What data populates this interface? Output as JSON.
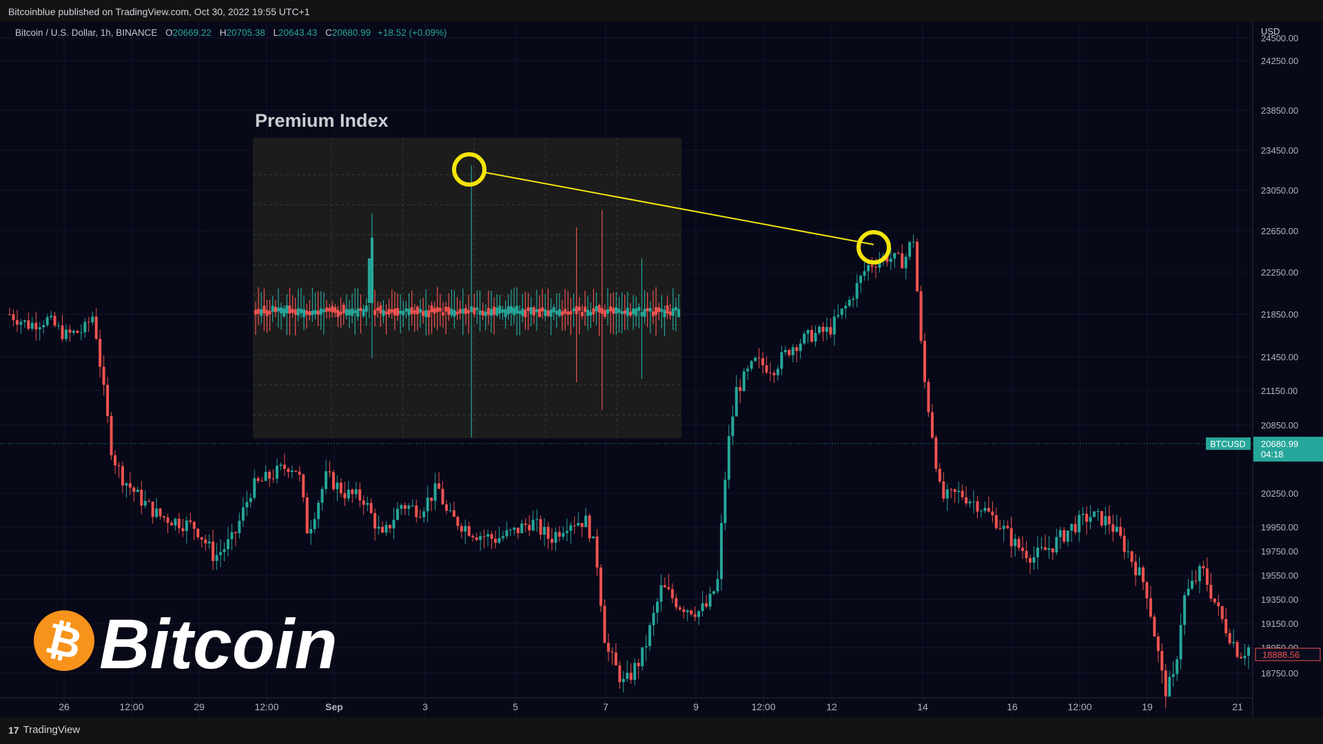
{
  "header": {
    "published_text": "Bitcoinblue published on TradingView.com, Oct 30, 2022 19:55 UTC+1"
  },
  "symbol": {
    "name": "Bitcoin / U.S. Dollar, 1h, BINANCE",
    "o_label": "O",
    "o_value": "20669.22",
    "h_label": "H",
    "h_value": "20705.38",
    "l_label": "L",
    "l_value": "20643.43",
    "c_label": "C",
    "c_value": "20680.99",
    "change": "+18.52 (+0.09%)"
  },
  "inset": {
    "title": "Premium Index"
  },
  "logo": {
    "text": "Bitcoin",
    "symbol": "₿"
  },
  "footer": {
    "brand": "TradingView",
    "logo_mark": "17"
  },
  "price_tag": {
    "label": "BTCUSD",
    "price": "20680.99",
    "countdown": "04:18",
    "low_marker": "18888.56"
  },
  "colors": {
    "up": "#26a69a",
    "down": "#ef5350",
    "background": "#070818",
    "annotation": "#f5e50a"
  },
  "chart_data": {
    "type": "candlestick",
    "currency": "USD",
    "y_ticks": [
      "24500.00",
      "24250.00",
      "23850.00",
      "23450.00",
      "23050.00",
      "22650.00",
      "22250.00",
      "21850.00",
      "21450.00",
      "21150.00",
      "20850.00",
      "20250.00",
      "19950.00",
      "19750.00",
      "19550.00",
      "19350.00",
      "19150.00",
      "18950.00",
      "18750.00"
    ],
    "x_ticks": [
      "26",
      "12:00",
      "29",
      "12:00",
      "Sep",
      "3",
      "5",
      "7",
      "9",
      "12:00",
      "12",
      "14",
      "16",
      "12:00",
      "19",
      "21"
    ],
    "current_price": 20680.99,
    "price_path": [
      [
        0,
        21850
      ],
      [
        2,
        21750
      ],
      [
        4,
        21800
      ],
      [
        6,
        21650
      ],
      [
        8,
        21700
      ],
      [
        9,
        21850
      ],
      [
        10,
        21200
      ],
      [
        11,
        20600
      ],
      [
        12,
        20400
      ],
      [
        14,
        20200
      ],
      [
        16,
        20050
      ],
      [
        18,
        20000
      ],
      [
        20,
        19950
      ],
      [
        22,
        19700
      ],
      [
        24,
        19850
      ],
      [
        26,
        20300
      ],
      [
        28,
        20400
      ],
      [
        30,
        20500
      ],
      [
        31,
        20450
      ],
      [
        32,
        19900
      ],
      [
        34,
        20400
      ],
      [
        36,
        20250
      ],
      [
        38,
        20200
      ],
      [
        40,
        19850
      ],
      [
        42,
        20150
      ],
      [
        44,
        20100
      ],
      [
        46,
        20300
      ],
      [
        47,
        20050
      ],
      [
        48,
        20000
      ],
      [
        50,
        19900
      ],
      [
        52,
        19850
      ],
      [
        54,
        19900
      ],
      [
        56,
        20000
      ],
      [
        58,
        19850
      ],
      [
        60,
        20000
      ],
      [
        62,
        20000
      ],
      [
        63,
        19700
      ],
      [
        64,
        18950
      ],
      [
        66,
        18650
      ],
      [
        68,
        18900
      ],
      [
        70,
        19450
      ],
      [
        72,
        19300
      ],
      [
        74,
        19250
      ],
      [
        75,
        19300
      ],
      [
        76,
        19500
      ],
      [
        77,
        20600
      ],
      [
        78,
        21150
      ],
      [
        80,
        21400
      ],
      [
        82,
        21350
      ],
      [
        84,
        21550
      ],
      [
        86,
        21650
      ],
      [
        88,
        21700
      ],
      [
        90,
        21950
      ],
      [
        92,
        22300
      ],
      [
        94,
        22400
      ],
      [
        96,
        22350
      ],
      [
        97,
        22600
      ],
      [
        98,
        21350
      ],
      [
        99,
        20800
      ],
      [
        100,
        20200
      ],
      [
        102,
        20250
      ],
      [
        104,
        20150
      ],
      [
        106,
        20000
      ],
      [
        108,
        19800
      ],
      [
        110,
        19700
      ],
      [
        112,
        19800
      ],
      [
        114,
        19950
      ],
      [
        116,
        20050
      ],
      [
        118,
        20000
      ],
      [
        120,
        19750
      ],
      [
        122,
        19450
      ],
      [
        124,
        18600
      ],
      [
        125,
        18700
      ],
      [
        126,
        19350
      ],
      [
        128,
        19600
      ],
      [
        130,
        19200
      ],
      [
        132,
        18900
      ],
      [
        133,
        18950
      ]
    ],
    "annotations": [
      {
        "type": "circle",
        "target": "inset premium spike"
      },
      {
        "type": "circle",
        "target": "price peak near Sep 12-13"
      },
      {
        "type": "line",
        "from": "inset spike",
        "to": "price peak"
      }
    ]
  }
}
